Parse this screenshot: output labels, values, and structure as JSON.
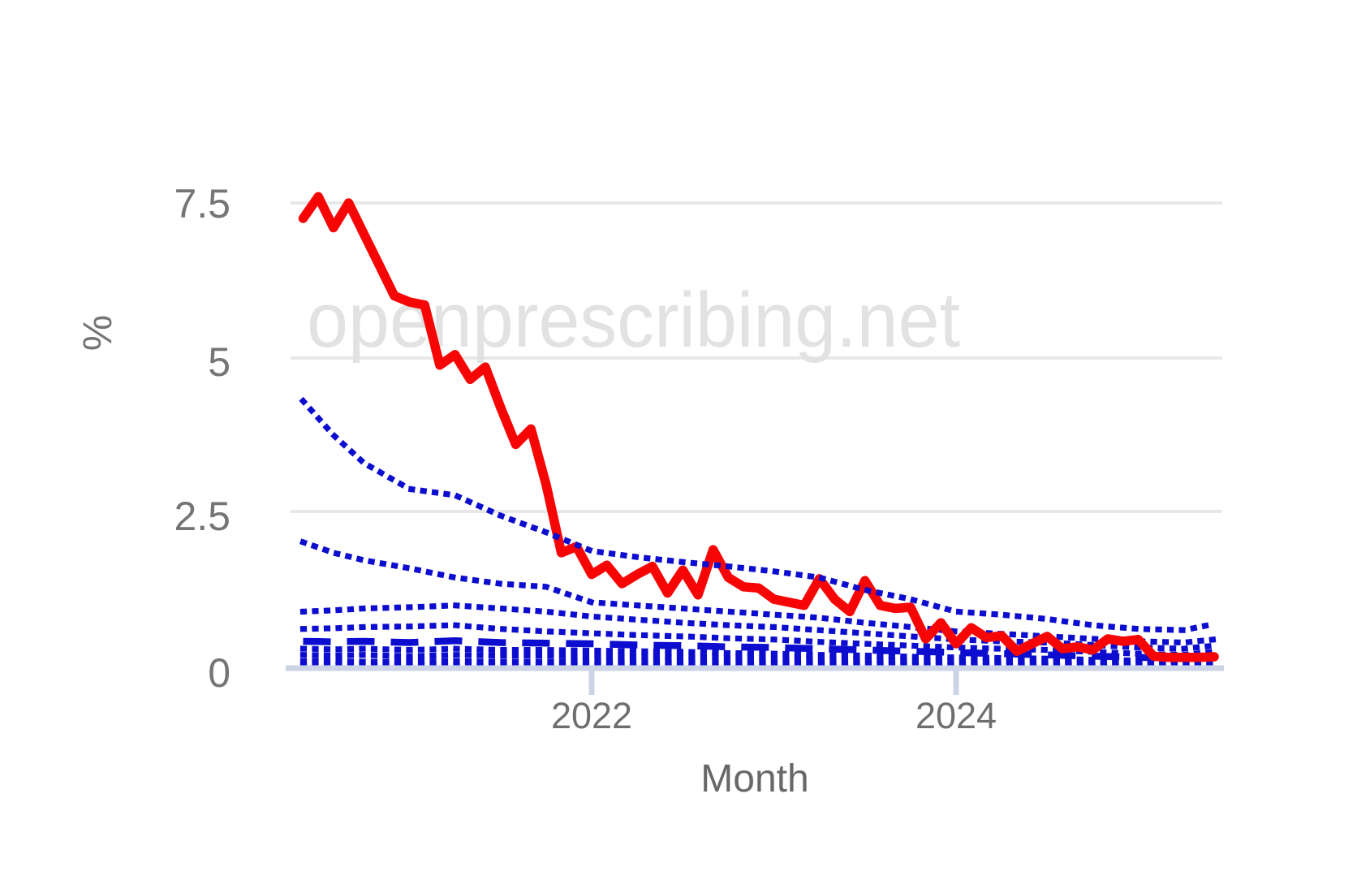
{
  "watermark": "openprescribing.net",
  "axis": {
    "y_title": "%",
    "x_title": "Month",
    "y_tick_labels": [
      "7.5",
      "5",
      "2.5",
      "0"
    ]
  },
  "chart_data": {
    "type": "line",
    "title": "",
    "xlabel": "Month",
    "ylabel": "%",
    "ylim": [
      0,
      8.3
    ],
    "yticks": [
      7.5,
      5,
      2.5,
      0
    ],
    "grid": "horizontal-only",
    "legend": "none",
    "x_start_month": "2020-06",
    "x_end_month": "2025-06",
    "months_count": 61,
    "xticks": [
      {
        "month_index": 19,
        "label": "2022"
      },
      {
        "month_index": 43,
        "label": "2024"
      }
    ],
    "decile_keys": [
      0,
      2,
      4,
      7,
      10,
      13,
      16,
      19,
      22,
      25,
      28,
      31,
      34,
      37,
      40,
      43,
      46,
      49,
      52,
      55,
      58,
      60
    ],
    "series": [
      {
        "name": "10th-percentile",
        "style": "dotted",
        "color": "#0d0dcf",
        "key_values": [
          0.03,
          0.03,
          0.03,
          0.03,
          0.03,
          0.03,
          0.03,
          0.03,
          0.02,
          0.02,
          0.02,
          0.02,
          0.02,
          0.02,
          0.02,
          0.02,
          0.02,
          0.02,
          0.01,
          0.01,
          0.01,
          0.01
        ]
      },
      {
        "name": "20th-percentile",
        "style": "dotted",
        "color": "#0d0dcf",
        "key_values": [
          0.1,
          0.1,
          0.09,
          0.09,
          0.1,
          0.09,
          0.09,
          0.09,
          0.08,
          0.08,
          0.07,
          0.07,
          0.06,
          0.06,
          0.05,
          0.05,
          0.05,
          0.05,
          0.04,
          0.04,
          0.04,
          0.04
        ]
      },
      {
        "name": "30th-percentile",
        "style": "dotted",
        "color": "#0d0dcf",
        "key_values": [
          0.2,
          0.19,
          0.2,
          0.18,
          0.2,
          0.19,
          0.19,
          0.18,
          0.17,
          0.16,
          0.15,
          0.14,
          0.13,
          0.12,
          0.11,
          0.1,
          0.1,
          0.09,
          0.08,
          0.07,
          0.07,
          0.08
        ]
      },
      {
        "name": "40th-percentile",
        "style": "dotted",
        "color": "#0d0dcf",
        "key_values": [
          0.3,
          0.29,
          0.3,
          0.28,
          0.3,
          0.28,
          0.28,
          0.27,
          0.26,
          0.25,
          0.23,
          0.22,
          0.2,
          0.19,
          0.17,
          0.16,
          0.15,
          0.14,
          0.12,
          0.11,
          0.1,
          0.12
        ]
      },
      {
        "name": "median-50th-percentile",
        "style": "dashed",
        "color": "#0d0dcf",
        "key_values": [
          0.42,
          0.41,
          0.42,
          0.4,
          0.43,
          0.4,
          0.39,
          0.38,
          0.36,
          0.35,
          0.33,
          0.32,
          0.3,
          0.28,
          0.26,
          0.24,
          0.22,
          0.2,
          0.18,
          0.16,
          0.15,
          0.18
        ]
      },
      {
        "name": "60th-percentile",
        "style": "dotted",
        "color": "#0d0dcf",
        "key_values": [
          0.62,
          0.63,
          0.65,
          0.66,
          0.68,
          0.62,
          0.58,
          0.55,
          0.52,
          0.5,
          0.47,
          0.45,
          0.41,
          0.38,
          0.35,
          0.32,
          0.3,
          0.28,
          0.25,
          0.22,
          0.2,
          0.25
        ]
      },
      {
        "name": "70th-percentile",
        "style": "dotted",
        "color": "#0d0dcf",
        "key_values": [
          0.9,
          0.92,
          0.95,
          0.97,
          1.0,
          0.95,
          0.9,
          0.82,
          0.77,
          0.72,
          0.68,
          0.65,
          0.6,
          0.55,
          0.5,
          0.45,
          0.42,
          0.4,
          0.36,
          0.32,
          0.3,
          0.35
        ]
      },
      {
        "name": "80th-percentile",
        "style": "dotted",
        "color": "#0d0dcf",
        "key_values": [
          2.02,
          1.85,
          1.73,
          1.6,
          1.45,
          1.35,
          1.3,
          1.05,
          1.0,
          0.95,
          0.9,
          0.85,
          0.8,
          0.72,
          0.65,
          0.58,
          0.54,
          0.5,
          0.46,
          0.42,
          0.4,
          0.45
        ]
      },
      {
        "name": "practice-value",
        "style": "solid",
        "color": "#f70505",
        "values": [
          7.25,
          7.6,
          7.1,
          7.5,
          7.0,
          6.5,
          6.0,
          5.9,
          5.85,
          4.88,
          5.05,
          4.65,
          4.85,
          4.2,
          3.6,
          3.85,
          2.95,
          1.85,
          1.95,
          1.5,
          1.65,
          1.35,
          1.5,
          1.63,
          1.2,
          1.57,
          1.17,
          1.9,
          1.45,
          1.3,
          1.28,
          1.1,
          1.05,
          1.0,
          1.43,
          1.1,
          0.9,
          1.4,
          1.0,
          0.95,
          0.97,
          0.46,
          0.72,
          0.38,
          0.64,
          0.48,
          0.51,
          0.26,
          0.38,
          0.5,
          0.3,
          0.33,
          0.28,
          0.46,
          0.42,
          0.45,
          0.18,
          0.16,
          0.16,
          0.16,
          0.17
        ]
      },
      {
        "name": "90th-percentile",
        "style": "dotted",
        "color": "#0d0dcf",
        "key_values": [
          4.3,
          3.75,
          3.3,
          2.88,
          2.78,
          2.45,
          2.18,
          1.88,
          1.78,
          1.7,
          1.63,
          1.55,
          1.45,
          1.25,
          1.1,
          0.9,
          0.85,
          0.78,
          0.68,
          0.62,
          0.6,
          0.7
        ]
      }
    ]
  },
  "colors": {
    "red_line": "#f70505",
    "decile_blue": "#0d0dcf",
    "gridline": "#e8e8e8",
    "axis_line": "#ccd3e6",
    "label_gray": "#6e6e6e",
    "watermark_gray": "#e2e2e2"
  }
}
